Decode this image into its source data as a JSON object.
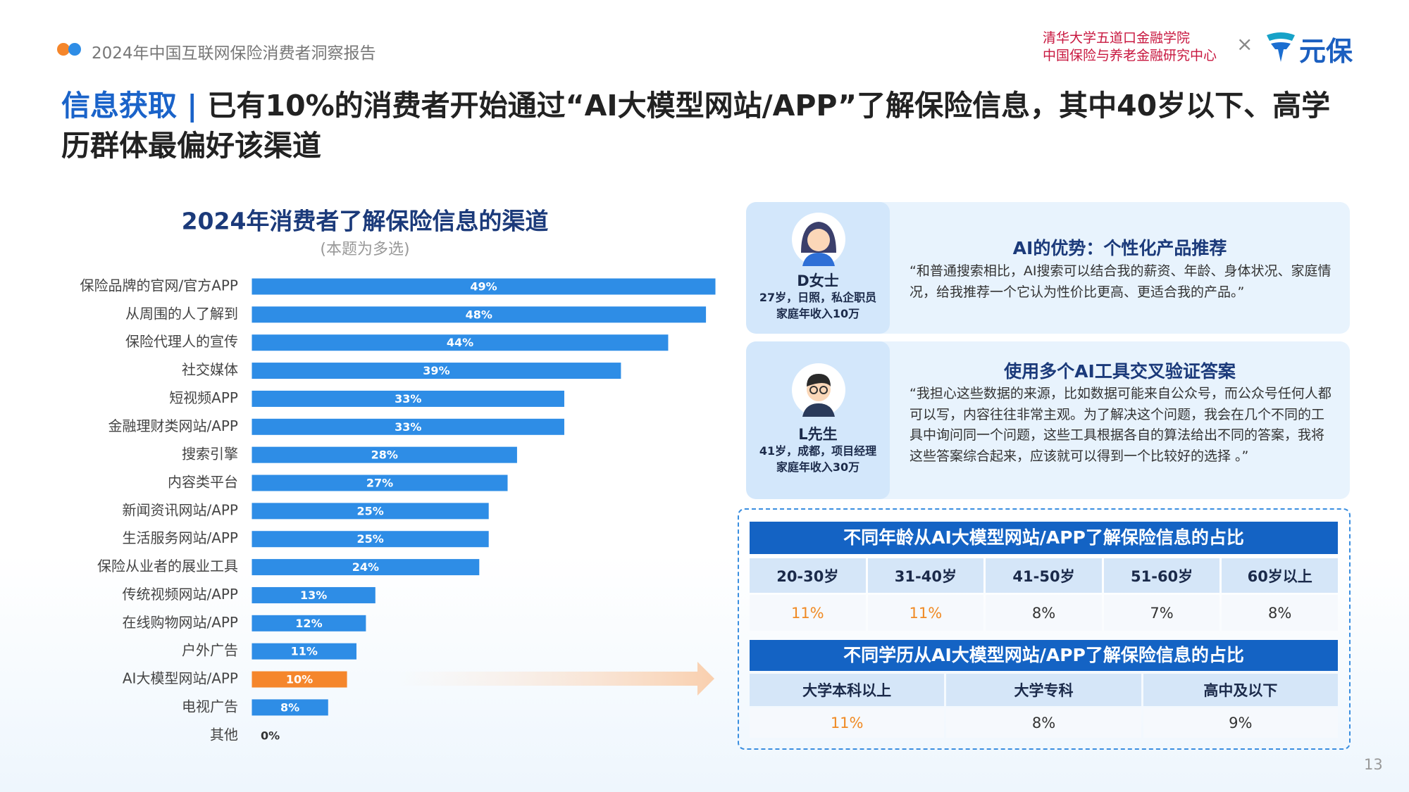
{
  "header": {
    "report": "2024年中国互联网保险消费者洞察报告",
    "org_lines": [
      "清华大学五道口金融学院",
      "中国保险与养老金融研究中心"
    ],
    "cross": "×",
    "logo": "元保"
  },
  "title": {
    "highlight": "信息获取",
    "separator": "|",
    "text": "已有10%的消费者开始通过“AI大模型网站/APP”了解保险信息，其中40岁以下、高学历群体最偏好该渠道"
  },
  "chart_data": {
    "type": "bar",
    "orientation": "horizontal",
    "title": "2024年消费者了解保险信息的渠道",
    "subtitle": "(本题为多选)",
    "categories": [
      "保险品牌的官网/官方APP",
      "从周围的人了解到",
      "保险代理人的宣传",
      "社交媒体",
      "短视频APP",
      "金融理财类网站/APP",
      "搜索引擎",
      "内容类平台",
      "新闻资讯网站/APP",
      "生活服务网站/APP",
      "保险从业者的展业工具",
      "传统视频网站/APP",
      "在线购物网站/APP",
      "户外广告",
      "AI大模型网站/APP",
      "电视广告",
      "其他"
    ],
    "values": [
      49,
      48,
      44,
      39,
      33,
      33,
      28,
      27,
      25,
      25,
      24,
      13,
      12,
      11,
      10,
      8,
      0
    ],
    "value_labels": [
      "49%",
      "48%",
      "44%",
      "39%",
      "33%",
      "33%",
      "28%",
      "27%",
      "25%",
      "25%",
      "24%",
      "13%",
      "12%",
      "11%",
      "10%",
      "8%",
      "0%"
    ],
    "colors": [
      "#2e8de6",
      "#2e8de6",
      "#2e8de6",
      "#2e8de6",
      "#2e8de6",
      "#2e8de6",
      "#2e8de6",
      "#2e8de6",
      "#2e8de6",
      "#2e8de6",
      "#2e8de6",
      "#2e8de6",
      "#2e8de6",
      "#2e8de6",
      "#f5862b",
      "#2e8de6",
      "#2e8de6"
    ]
  },
  "quotes": [
    {
      "name": "D女士",
      "profile": "27岁，日照，私企职员",
      "income": "家庭年收入10万",
      "heading": "AI的优势：个性化产品推荐",
      "text": "“和普通搜索相比，AI搜索可以结合我的薪资、年龄、身体状况、家庭情况，给我推荐一个它认为性价比更高、更适合我的产品。”"
    },
    {
      "name": "L先生",
      "profile": "41岁，成都，项目经理",
      "income": "家庭年收入30万",
      "heading": "使用多个AI工具交叉验证答案",
      "text": "“我担心这些数据的来源，比如数据可能来自公众号，而公众号任何人都可以写，内容往往非常主观。为了解决这个问题，我会在几个不同的工具中询问同一个问题，这些工具根据各自的算法给出不同的答案，我将这些答案综合起来，应该就可以得到一个比较好的选择 。”"
    }
  ],
  "age_table": {
    "title": "不同年龄从AI大模型网站/APP了解保险信息的占比",
    "headers": [
      "20-30岁",
      "31-40岁",
      "41-50岁",
      "51-60岁",
      "60岁以上"
    ],
    "values": [
      "11%",
      "11%",
      "8%",
      "7%",
      "8%"
    ],
    "value_colors": [
      "#f08a24",
      "#f08a24",
      "#333333",
      "#333333",
      "#333333"
    ]
  },
  "edu_table": {
    "title": "不同学历从AI大模型网站/APP了解保险信息的占比",
    "headers": [
      "大学本科以上",
      "大学专科",
      "高中及以下"
    ],
    "values": [
      "11%",
      "8%",
      "9%"
    ],
    "value_colors": [
      "#f08a24",
      "#333333",
      "#333333"
    ]
  },
  "page_number": 13
}
